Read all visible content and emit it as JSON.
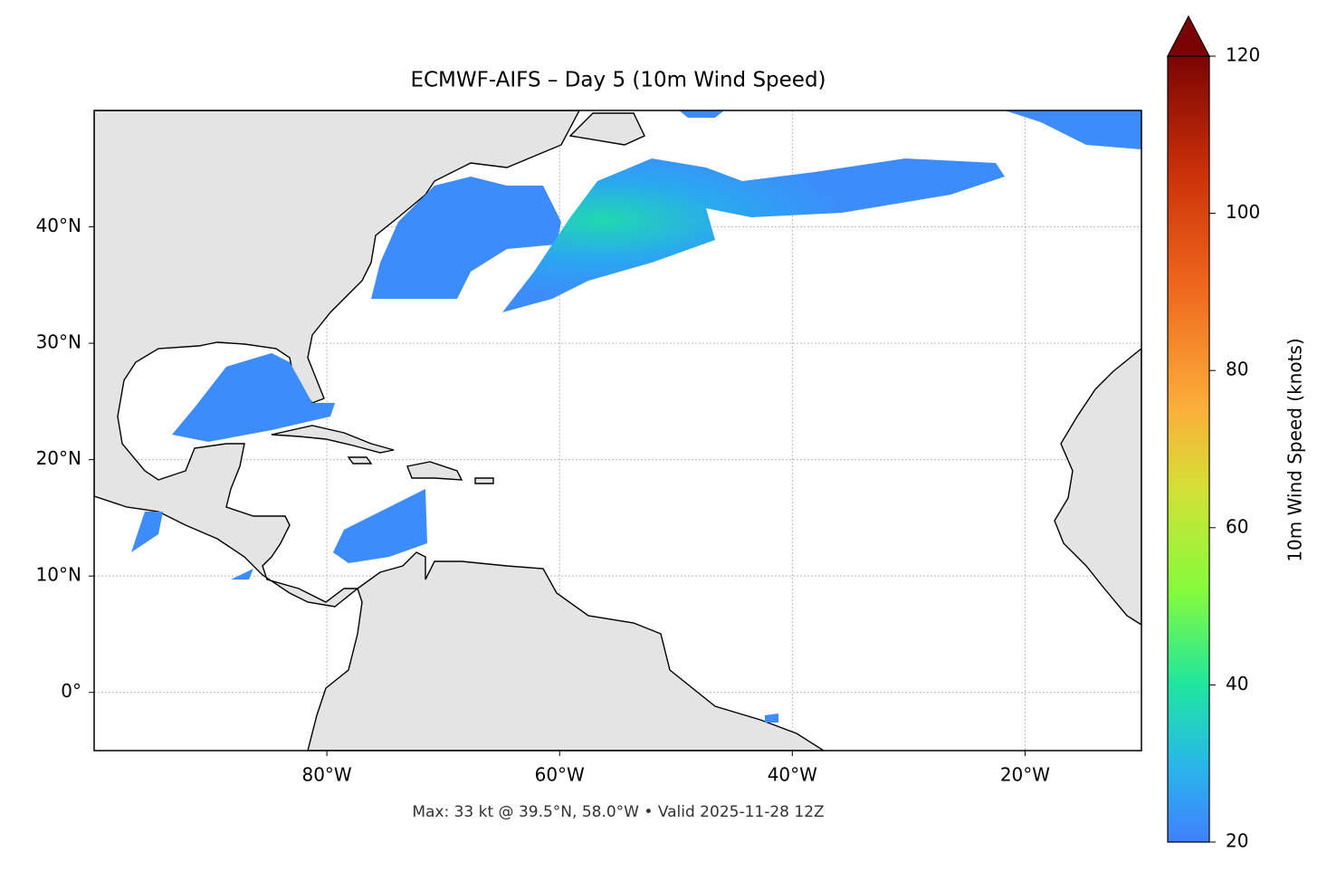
{
  "map": {
    "title": "ECMWF-AIFS – Day 5 (10m Wind Speed)",
    "subtitle": "Max: 33 kt @ 39.5°N, 58.0°W • Valid 2025-11-28 12Z",
    "xlim": [
      -100,
      -10
    ],
    "ylim": [
      -5,
      50
    ],
    "xticks": [
      {
        "value": -80,
        "label": "80°W"
      },
      {
        "value": -60,
        "label": "60°W"
      },
      {
        "value": -40,
        "label": "40°W"
      },
      {
        "value": -20,
        "label": "20°W"
      }
    ],
    "yticks": [
      {
        "value": 0,
        "label": "0°"
      },
      {
        "value": 10,
        "label": "10°N"
      },
      {
        "value": 20,
        "label": "20°N"
      },
      {
        "value": 30,
        "label": "30°N"
      },
      {
        "value": 40,
        "label": "40°N"
      }
    ],
    "grid": true,
    "colorbar": {
      "label": "10m Wind Speed (knots)",
      "lim": [
        20,
        120
      ],
      "ticks": [
        20,
        40,
        60,
        80,
        100,
        120
      ],
      "extend": "max"
    }
  }
}
